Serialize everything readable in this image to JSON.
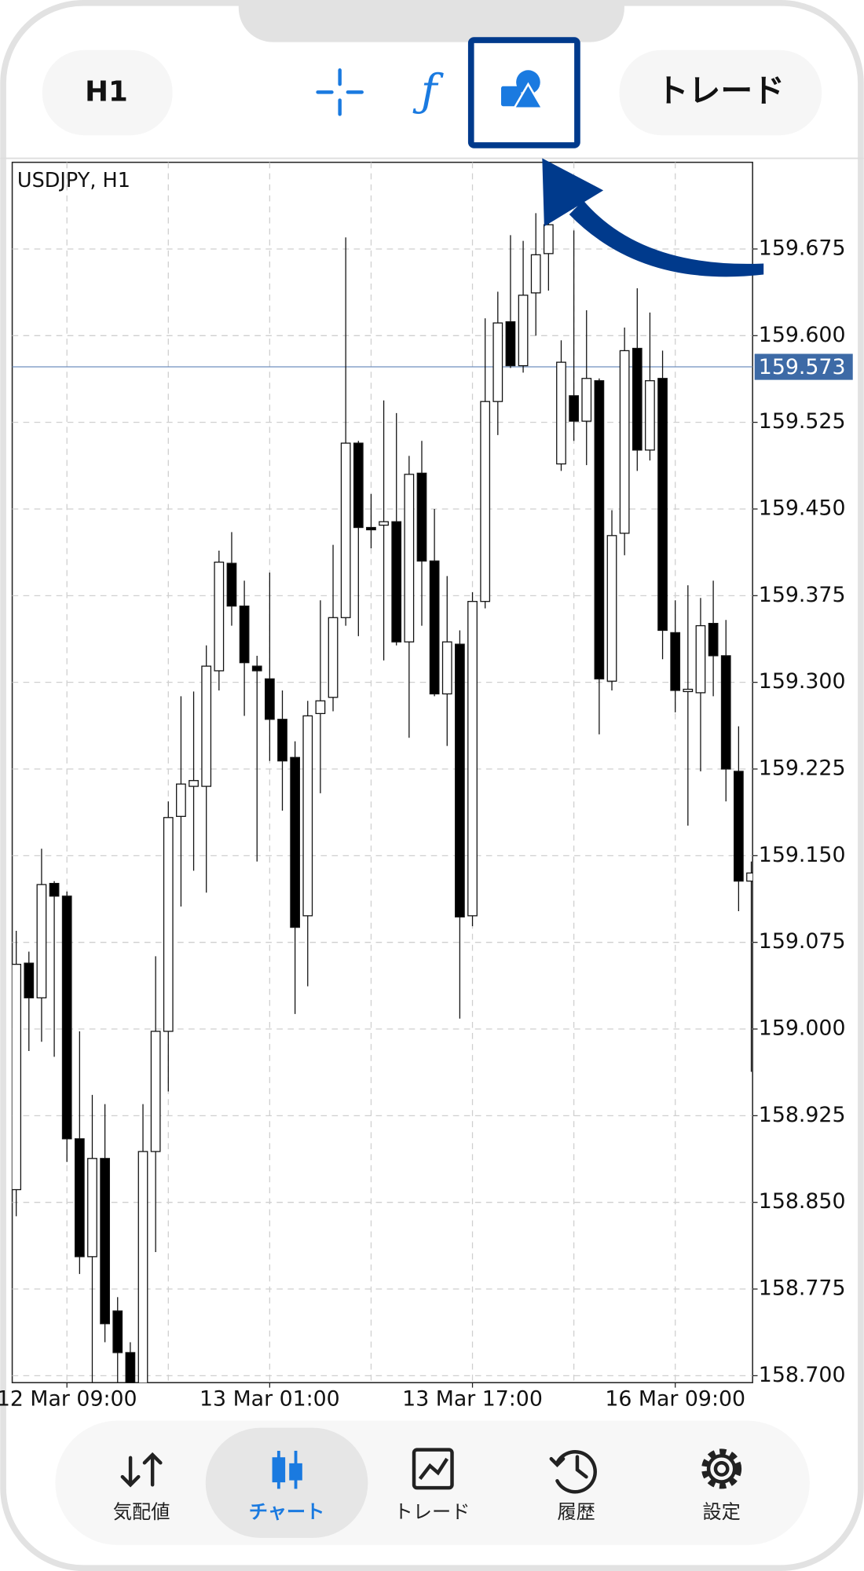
{
  "toolbar": {
    "timeframe": "H1",
    "trade": "トレード"
  },
  "nav": [
    "気配値",
    "チャート",
    "トレード",
    "履歴",
    "設定"
  ],
  "chart_data": {
    "type": "candlestick",
    "title": "USDJPY, H1",
    "up_color": "#ffffff",
    "down_color": "#000000",
    "categories": [
      null,
      null,
      null,
      null,
      "12 Mar 09:00",
      null,
      null,
      null,
      null,
      null,
      null,
      null,
      null,
      null,
      null,
      null,
      null,
      null,
      null,
      null,
      "13 Mar 01:00",
      null,
      null,
      null,
      null,
      null,
      null,
      null,
      null,
      null,
      null,
      null,
      null,
      null,
      null,
      null,
      "13 Mar 17:00",
      null,
      null,
      null,
      null,
      null,
      null,
      null,
      null,
      null,
      null,
      null,
      null,
      null,
      null,
      null,
      "16 Mar 09:00",
      null,
      null,
      null,
      null,
      null,
      null
    ],
    "open": [
      158.861,
      159.057,
      159.027,
      159.126,
      159.115,
      158.905,
      158.803,
      158.888,
      158.756,
      158.72,
      158.685,
      158.894,
      158.998,
      159.184,
      159.21,
      159.21,
      159.31,
      159.403,
      159.366,
      159.314,
      159.303,
      159.268,
      159.235,
      159.098,
      159.273,
      159.287,
      159.356,
      159.507,
      159.434,
      159.436,
      159.439,
      159.335,
      159.481,
      159.405,
      159.29,
      159.333,
      159.098,
      159.37,
      159.543,
      159.612,
      159.574,
      159.637,
      159.671,
      159.489,
      159.548,
      159.526,
      159.561,
      159.301,
      159.429,
      159.589,
      159.501,
      159.563,
      159.343,
      159.292,
      159.291,
      159.351,
      159.323,
      159.223,
      159.128
    ],
    "high": [
      159.085,
      159.067,
      159.156,
      159.128,
      159.119,
      158.998,
      158.943,
      158.935,
      158.768,
      158.729,
      158.935,
      159.063,
      159.197,
      159.288,
      159.292,
      159.332,
      159.414,
      159.43,
      159.388,
      159.323,
      159.395,
      159.293,
      159.249,
      159.284,
      159.371,
      159.419,
      159.685,
      159.509,
      159.463,
      159.544,
      159.533,
      159.496,
      159.509,
      159.45,
      159.392,
      159.345,
      159.378,
      159.615,
      159.638,
      159.687,
      159.682,
      159.706,
      159.704,
      159.596,
      159.691,
      159.622,
      159.563,
      159.449,
      159.607,
      159.641,
      159.62,
      159.587,
      159.371,
      159.384,
      159.373,
      159.388,
      159.354,
      159.262,
      159.145
    ],
    "low": [
      158.838,
      158.981,
      158.989,
      158.976,
      158.885,
      158.788,
      158.69,
      158.729,
      158.69,
      158.675,
      158.675,
      158.807,
      158.946,
      159.106,
      159.137,
      159.118,
      159.293,
      159.349,
      159.271,
      159.145,
      159.232,
      159.189,
      159.013,
      159.037,
      159.204,
      159.275,
      159.349,
      159.34,
      159.416,
      159.319,
      159.332,
      159.252,
      159.349,
      159.288,
      159.245,
      159.009,
      159.089,
      159.364,
      159.514,
      159.572,
      159.568,
      159.6,
      159.639,
      159.483,
      159.509,
      159.488,
      159.255,
      159.293,
      159.41,
      159.483,
      159.492,
      159.32,
      159.274,
      159.176,
      159.223,
      159.288,
      159.197,
      159.102,
      158.963
    ],
    "close": [
      159.056,
      159.027,
      159.125,
      159.115,
      158.905,
      158.803,
      158.888,
      158.745,
      158.72,
      158.685,
      158.894,
      158.998,
      159.183,
      159.212,
      159.215,
      159.314,
      159.404,
      159.366,
      159.317,
      159.31,
      159.268,
      159.232,
      159.088,
      159.271,
      159.284,
      159.356,
      159.507,
      159.434,
      159.432,
      159.439,
      159.335,
      159.48,
      159.405,
      159.29,
      159.335,
      159.097,
      159.37,
      159.543,
      159.611,
      159.574,
      159.635,
      159.67,
      159.696,
      159.577,
      159.526,
      159.563,
      159.303,
      159.427,
      159.587,
      159.501,
      159.561,
      159.345,
      159.293,
      159.294,
      159.349,
      159.323,
      159.225,
      159.128,
      159.135
    ],
    "ylim": [
      158.694,
      159.75
    ],
    "yticks": [
      {
        "value": 158.7,
        "label": "158.700"
      },
      158.775,
      {
        "value": 158.85,
        "label": "158.850"
      },
      158.925,
      {
        "value": 159,
        "label": "159.000"
      },
      159.075,
      {
        "value": 159.15,
        "label": "159.150"
      },
      159.225,
      {
        "value": 159.3,
        "label": "159.300"
      },
      159.375,
      {
        "value": 159.45,
        "label": "159.450"
      },
      159.525,
      {
        "value": 159.6,
        "label": "159.600"
      },
      159.675
    ],
    "price_line": {
      "value": 159.573,
      "label": "159.573"
    },
    "grid": true
  }
}
